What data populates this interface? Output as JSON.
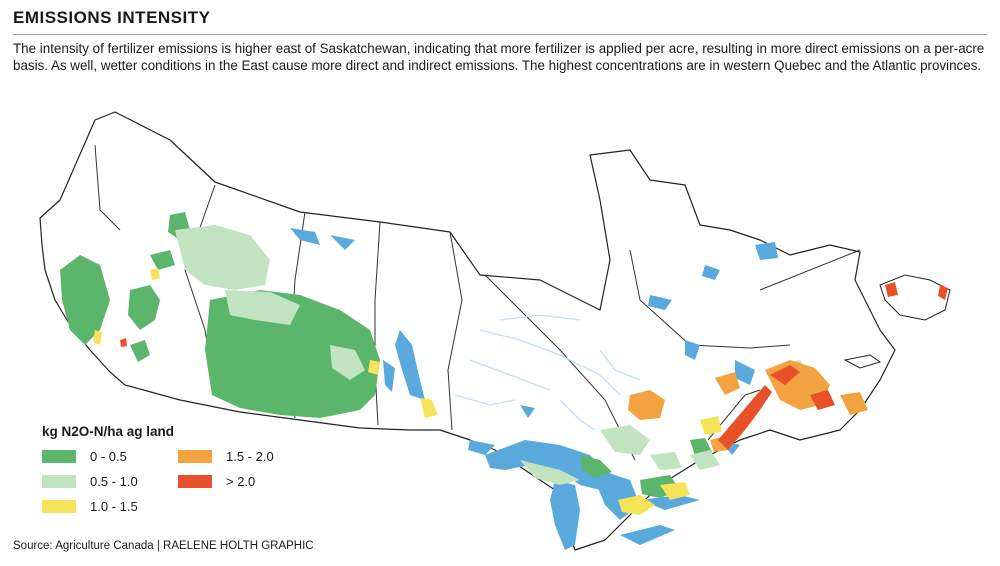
{
  "title": "EMISSIONS INTENSITY",
  "description": "The intensity of fertilizer emissions is higher east of Saskatchewan, indicating that more fertilizer is applied per acre, resulting in more direct emissions on a per-acre basis. As well, wetter conditions in the East cause more direct and indirect emissions. The highest concentrations are in western Quebec and the Atlantic provinces.",
  "legend": {
    "title": "kg N2O-N/ha ag land",
    "items": [
      {
        "label": "0 - 0.5",
        "color": "#5bb56a"
      },
      {
        "label": "0.5 - 1.0",
        "color": "#c2e3c0"
      },
      {
        "label": "1.0 - 1.5",
        "color": "#f7e35a"
      },
      {
        "label": "1.5 - 2.0",
        "color": "#f2a241"
      },
      {
        "label": "> 2.0",
        "color": "#e8502a"
      }
    ]
  },
  "water_color": "#5aa9dc",
  "source": "Source: Agriculture Canada  |  RAELENE HOLTH GRAPHIC"
}
